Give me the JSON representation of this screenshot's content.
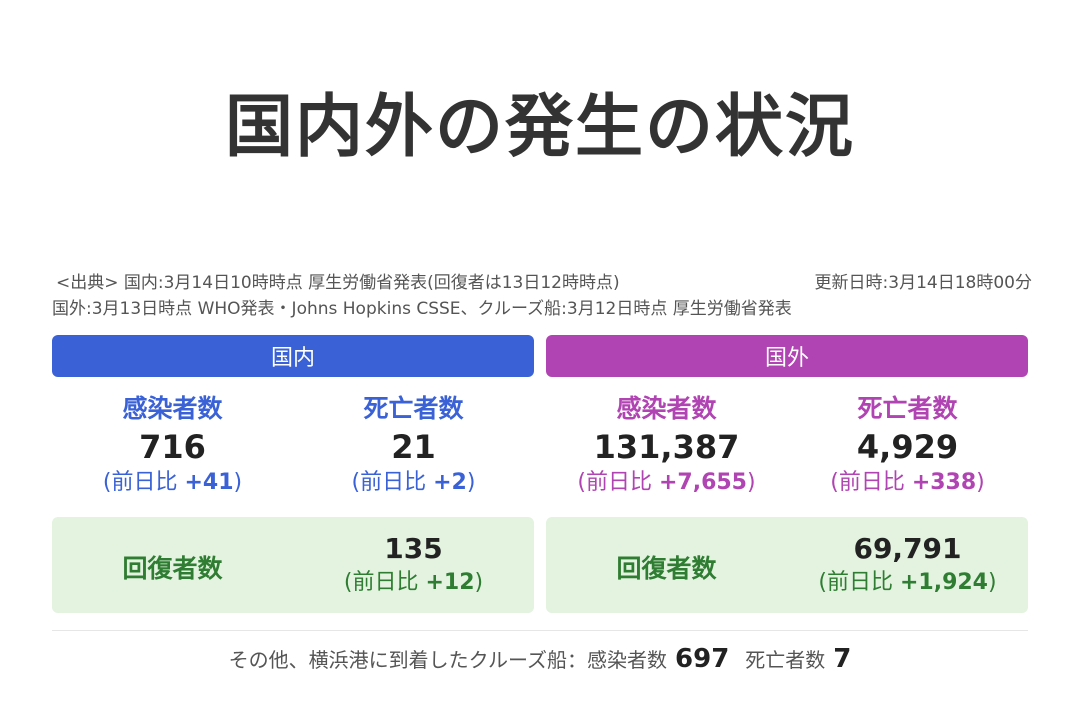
{
  "title": "国内外の発生の状況",
  "source": {
    "line1_left": "<出典> 国内:3月14日10時時点 厚生労働省発表(回復者は13日12時時点)",
    "line1_right": "更新日時:3月14日18時00分",
    "line2": "国外:3月13日時点 WHO発表・Johns Hopkins CSSE、クルーズ船:3月12日時点 厚生労働省発表"
  },
  "colors": {
    "domestic": "#3a62d6",
    "world": "#b044b2",
    "recovered_bg": "#e3f3e0",
    "recovered_text": "#2f7d32"
  },
  "domestic": {
    "header": "国内",
    "infected": {
      "label": "感染者数",
      "value": "716",
      "diff_prefix": "(前日比 ",
      "diff": "+41",
      "diff_suffix": ")"
    },
    "deaths": {
      "label": "死亡者数",
      "value": "21",
      "diff_prefix": "(前日比 ",
      "diff": "+2",
      "diff_suffix": ")"
    },
    "recovered": {
      "label": "回復者数",
      "value": "135",
      "diff_prefix": "(前日比 ",
      "diff": "+12",
      "diff_suffix": ")"
    }
  },
  "world": {
    "header": "国外",
    "infected": {
      "label": "感染者数",
      "value": "131,387",
      "diff_prefix": "(前日比 ",
      "diff": "+7,655",
      "diff_suffix": ")"
    },
    "deaths": {
      "label": "死亡者数",
      "value": "4,929",
      "diff_prefix": "(前日比 ",
      "diff": "+338",
      "diff_suffix": ")"
    },
    "recovered": {
      "label": "回復者数",
      "value": "69,791",
      "diff_prefix": "(前日比 ",
      "diff": "+1,924",
      "diff_suffix": ")"
    }
  },
  "footer": {
    "text": "その他、横浜港に到着したクルーズ船：感染者数",
    "infected": "697",
    "deaths_label": "死亡者数",
    "deaths": "7"
  }
}
